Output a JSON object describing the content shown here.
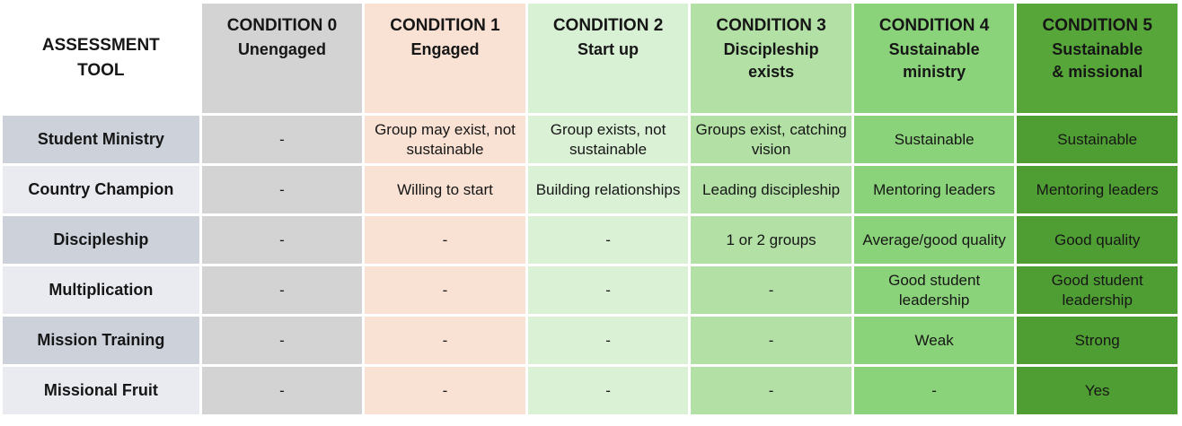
{
  "chart_data": {
    "type": "table",
    "title": "",
    "columns": [
      "ASSESSMENT TOOL",
      "CONDITION 0 Unengaged",
      "CONDITION 1 Engaged",
      "CONDITION 2 Start up",
      "CONDITION 3 Discipleship exists",
      "CONDITION 4 Sustainable ministry",
      "CONDITION 5 Sustainable & missional"
    ],
    "rows": [
      [
        "Student Ministry",
        "-",
        "Group may exist, not sustainable",
        "Group exists, not sustainable",
        "Groups exist, catching vision",
        "Sustainable",
        "Sustainable"
      ],
      [
        "Country Champion",
        "-",
        "Willing to start",
        "Building relationships",
        "Leading discipleship",
        "Mentoring leaders",
        "Mentoring leaders"
      ],
      [
        "Discipleship",
        "-",
        "-",
        "-",
        "1 or 2 groups",
        "Average/good quality",
        "Good quality"
      ],
      [
        "Multiplication",
        "-",
        "-",
        "-",
        "-",
        "Good student leadership",
        "Good student leadership"
      ],
      [
        "Mission Training",
        "-",
        "-",
        "-",
        "-",
        "Weak",
        "Strong"
      ],
      [
        "Missional Fruit",
        "-",
        "-",
        "-",
        "-",
        "-",
        "Yes"
      ]
    ]
  },
  "table": {
    "corner_header": "ASSESSMENT TOOL",
    "columns": [
      {
        "title": "CONDITION 0",
        "subtitle": "Unengaged",
        "header_bg": "#d3d3d3",
        "cell_bg": "#d3d3d3"
      },
      {
        "title": "CONDITION 1",
        "subtitle": "Engaged",
        "header_bg": "#f9e2d4",
        "cell_bg": "#f9e2d4"
      },
      {
        "title": "CONDITION 2",
        "subtitle": "Start up",
        "header_bg": "#d8f0d4",
        "cell_bg": "#daf1d6"
      },
      {
        "title": "CONDITION 3",
        "subtitle": "Discipleship\nexists",
        "header_bg": "#b2e0a5",
        "cell_bg": "#b2e0a5"
      },
      {
        "title": "CONDITION 4",
        "subtitle": "Sustainable\nministry",
        "header_bg": "#8bd37a",
        "cell_bg": "#8bd37a"
      },
      {
        "title": "CONDITION 5",
        "subtitle": "Sustainable\n& missional",
        "header_bg": "#57a639",
        "cell_bg": "#4f9e33"
      }
    ],
    "rows": [
      {
        "label": "Student Ministry",
        "cells": [
          "-",
          "Group may exist, not sustainable",
          "Group exists, not sustainable",
          "Groups exist, catching vision",
          "Sustainable",
          "Sustainable"
        ]
      },
      {
        "label": "Country Champion",
        "cells": [
          "-",
          "Willing to start",
          "Building relationships",
          "Leading discipleship",
          "Mentoring leaders",
          "Mentoring leaders"
        ]
      },
      {
        "label": "Discipleship",
        "cells": [
          "-",
          "-",
          "-",
          "1 or 2 groups",
          "Average/good quality",
          "Good quality"
        ]
      },
      {
        "label": "Multiplication",
        "cells": [
          "-",
          "-",
          "-",
          "-",
          "Good student leadership",
          "Good student leadership"
        ]
      },
      {
        "label": "Mission Training",
        "cells": [
          "-",
          "-",
          "-",
          "-",
          "Weak",
          "Strong"
        ]
      },
      {
        "label": "Missional Fruit",
        "cells": [
          "-",
          "-",
          "-",
          "-",
          "-",
          "Yes"
        ]
      }
    ],
    "colors": {
      "background": "#ffffff",
      "text": "#161616",
      "row_label_odd_bg": "#ccd1da",
      "row_label_even_bg": "#e9ebf0"
    }
  }
}
